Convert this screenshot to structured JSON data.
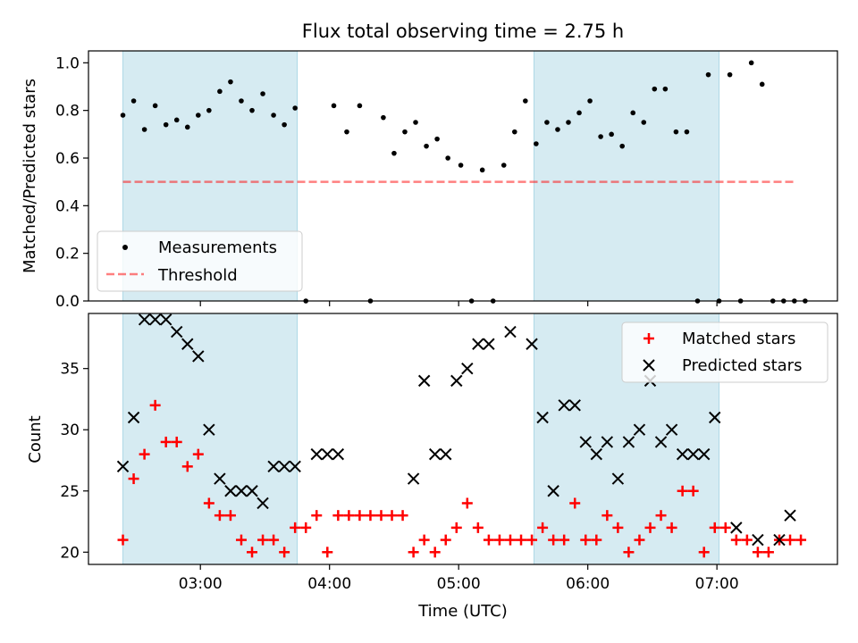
{
  "colors": {
    "band": "#add8e6",
    "threshold": "#ff0000",
    "measurements": "#000000",
    "matched": "#ff0000",
    "predicted": "#000000"
  },
  "chart_data": [
    {
      "type": "scatter",
      "title": "Flux total observing time = 2.75 h",
      "xlabel": "",
      "ylabel": "Matched/Predicted stars",
      "xlim": [
        "02:08",
        "07:56"
      ],
      "ylim": [
        0,
        1.05
      ],
      "yticks": [
        0.0,
        0.2,
        0.4,
        0.6,
        0.8,
        1.0
      ],
      "ytick_labels": [
        "0.0",
        "0.2",
        "0.4",
        "0.6",
        "0.8",
        "1.0"
      ],
      "grid": false,
      "legend_position": "lower-left",
      "shaded_intervals": [
        [
          "02:24",
          "03:45"
        ],
        [
          "05:35",
          "07:01"
        ]
      ],
      "series": [
        {
          "name": "Measurements",
          "marker": "dot",
          "x": [
            "02:24",
            "02:29",
            "02:34",
            "02:39",
            "02:44",
            "02:49",
            "02:54",
            "02:59",
            "03:04",
            "03:09",
            "03:14",
            "03:19",
            "03:24",
            "03:29",
            "03:34",
            "03:39",
            "03:44",
            "03:49",
            "04:02",
            "04:08",
            "04:14",
            "04:19",
            "04:25",
            "04:30",
            "04:35",
            "04:40",
            "04:45",
            "04:50",
            "04:55",
            "05:01",
            "05:06",
            "05:11",
            "05:16",
            "05:21",
            "05:26",
            "05:31",
            "05:36",
            "05:41",
            "05:46",
            "05:51",
            "05:56",
            "06:01",
            "06:06",
            "06:11",
            "06:16",
            "06:21",
            "06:26",
            "06:31",
            "06:36",
            "06:41",
            "06:46",
            "06:51",
            "06:56",
            "07:01",
            "07:06",
            "07:11",
            "07:16",
            "07:21",
            "07:26",
            "07:31",
            "07:36",
            "07:41"
          ],
          "y": [
            0.78,
            0.84,
            0.72,
            0.82,
            0.74,
            0.76,
            0.73,
            0.78,
            0.8,
            0.88,
            0.92,
            0.84,
            0.8,
            0.87,
            0.78,
            0.74,
            0.81,
            0.0,
            0.82,
            0.71,
            0.82,
            0.0,
            0.77,
            0.62,
            0.71,
            0.75,
            0.65,
            0.68,
            0.6,
            0.57,
            0.0,
            0.55,
            0.0,
            0.57,
            0.71,
            0.84,
            0.66,
            0.75,
            0.72,
            0.75,
            0.79,
            0.84,
            0.69,
            0.7,
            0.65,
            0.79,
            0.75,
            0.89,
            0.89,
            0.71,
            0.71,
            0.0,
            0.95,
            0.0,
            0.95,
            0.0,
            1.0,
            0.91,
            0.0,
            0.0,
            0.0,
            0.0
          ]
        },
        {
          "name": "Threshold",
          "style": "dashed",
          "x": [
            "02:24",
            "07:36"
          ],
          "y": [
            0.5,
            0.5
          ]
        }
      ]
    },
    {
      "type": "scatter",
      "title": "",
      "xlabel": "Time (UTC)",
      "ylabel": "Count",
      "xlim": [
        "02:08",
        "07:56"
      ],
      "ylim": [
        19,
        39.5
      ],
      "xticks": [
        "03:00",
        "04:00",
        "05:00",
        "06:00",
        "07:00"
      ],
      "xtick_labels": [
        "03:00",
        "04:00",
        "05:00",
        "06:00",
        "07:00"
      ],
      "yticks": [
        20,
        25,
        30,
        35
      ],
      "ytick_labels": [
        "20",
        "25",
        "30",
        "35"
      ],
      "grid": false,
      "legend_position": "upper-right",
      "shaded_intervals": [
        [
          "02:24",
          "03:45"
        ],
        [
          "05:35",
          "07:01"
        ]
      ],
      "series": [
        {
          "name": "Matched stars",
          "marker": "plus",
          "x": [
            "02:24",
            "02:29",
            "02:34",
            "02:39",
            "02:44",
            "02:49",
            "02:54",
            "02:59",
            "03:04",
            "03:09",
            "03:14",
            "03:19",
            "03:24",
            "03:29",
            "03:34",
            "03:39",
            "03:44",
            "03:49",
            "03:54",
            "03:59",
            "04:04",
            "04:09",
            "04:14",
            "04:19",
            "04:24",
            "04:29",
            "04:34",
            "04:39",
            "04:44",
            "04:49",
            "04:54",
            "04:59",
            "05:04",
            "05:09",
            "05:14",
            "05:19",
            "05:24",
            "05:29",
            "05:34",
            "05:39",
            "05:44",
            "05:49",
            "05:54",
            "05:59",
            "06:04",
            "06:09",
            "06:14",
            "06:19",
            "06:24",
            "06:29",
            "06:34",
            "06:39",
            "06:44",
            "06:49",
            "06:54",
            "06:59",
            "07:04",
            "07:09",
            "07:14",
            "07:19",
            "07:24",
            "07:29",
            "07:34",
            "07:39"
          ],
          "y": [
            21,
            26,
            28,
            32,
            29,
            29,
            27,
            28,
            24,
            23,
            23,
            21,
            20,
            21,
            21,
            20,
            22,
            22,
            23,
            20,
            23,
            23,
            23,
            23,
            23,
            23,
            23,
            20,
            21,
            20,
            21,
            22,
            24,
            22,
            21,
            21,
            21,
            21,
            21,
            22,
            21,
            21,
            24,
            21,
            21,
            23,
            22,
            20,
            21,
            22,
            23,
            22,
            25,
            25,
            20,
            22,
            22,
            21,
            21,
            20,
            20,
            21,
            21,
            21
          ]
        },
        {
          "name": "Predicted stars",
          "marker": "x",
          "x": [
            "02:24",
            "02:29",
            "02:34",
            "02:39",
            "02:44",
            "02:49",
            "02:54",
            "02:59",
            "03:04",
            "03:09",
            "03:14",
            "03:19",
            "03:24",
            "03:29",
            "03:34",
            "03:39",
            "03:44",
            "03:54",
            "03:59",
            "04:04",
            "04:39",
            "04:44",
            "04:49",
            "04:54",
            "04:59",
            "05:04",
            "05:09",
            "05:14",
            "05:24",
            "05:34",
            "05:39",
            "05:44",
            "05:49",
            "05:54",
            "05:59",
            "06:04",
            "06:09",
            "06:14",
            "06:19",
            "06:24",
            "06:29",
            "06:34",
            "06:39",
            "06:44",
            "06:49",
            "06:54",
            "06:59",
            "07:09",
            "07:19",
            "07:29",
            "07:34"
          ],
          "y": [
            27,
            31,
            39,
            39,
            39,
            38,
            37,
            36,
            30,
            26,
            25,
            25,
            25,
            24,
            27,
            27,
            27,
            28,
            28,
            28,
            26,
            34,
            28,
            28,
            34,
            35,
            37,
            37,
            38,
            37,
            31,
            25,
            32,
            32,
            29,
            28,
            29,
            26,
            29,
            30,
            34,
            29,
            30,
            28,
            28,
            28,
            31,
            22,
            21,
            21,
            23
          ]
        }
      ]
    }
  ]
}
